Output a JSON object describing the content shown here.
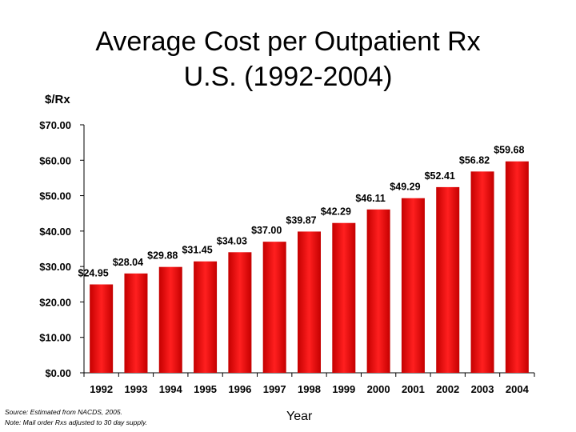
{
  "colors": {
    "bar_dark": "#c40000",
    "bar_light": "#ff1f1f",
    "axis": "#000000",
    "background": "#ffffff"
  },
  "chart_data": {
    "type": "bar",
    "title": [
      "Average Cost per Outpatient Rx",
      "U.S. (1992-2004)"
    ],
    "xlabel": "Year",
    "ylabel": "$/Rx",
    "categories": [
      "1992",
      "1993",
      "1994",
      "1995",
      "1996",
      "1997",
      "1998",
      "1999",
      "2000",
      "2001",
      "2002",
      "2003",
      "2004"
    ],
    "values": [
      24.95,
      28.04,
      29.88,
      31.45,
      34.03,
      37.0,
      39.87,
      42.29,
      46.11,
      49.29,
      52.41,
      56.82,
      59.68
    ],
    "data_labels": [
      "$24.95",
      "$28.04",
      "$29.88",
      "$31.45",
      "$34.03",
      "$37.00",
      "$39.87",
      "$42.29",
      "$46.11",
      "$49.29",
      "$52.41",
      "$56.82",
      "$59.68"
    ],
    "y_ticks": [
      0,
      10,
      20,
      30,
      40,
      50,
      60,
      70
    ],
    "y_tick_labels": [
      "$0.00",
      "$10.00",
      "$20.00",
      "$30.00",
      "$40.00",
      "$50.00",
      "$60.00",
      "$70.00"
    ],
    "ylim": [
      0,
      70
    ],
    "grid": false,
    "legend": "none"
  },
  "footnote": {
    "source": "Source: Estimated from NACDS, 2005.",
    "note": "Note: Mail order Rxs adjusted to 30 day supply."
  }
}
